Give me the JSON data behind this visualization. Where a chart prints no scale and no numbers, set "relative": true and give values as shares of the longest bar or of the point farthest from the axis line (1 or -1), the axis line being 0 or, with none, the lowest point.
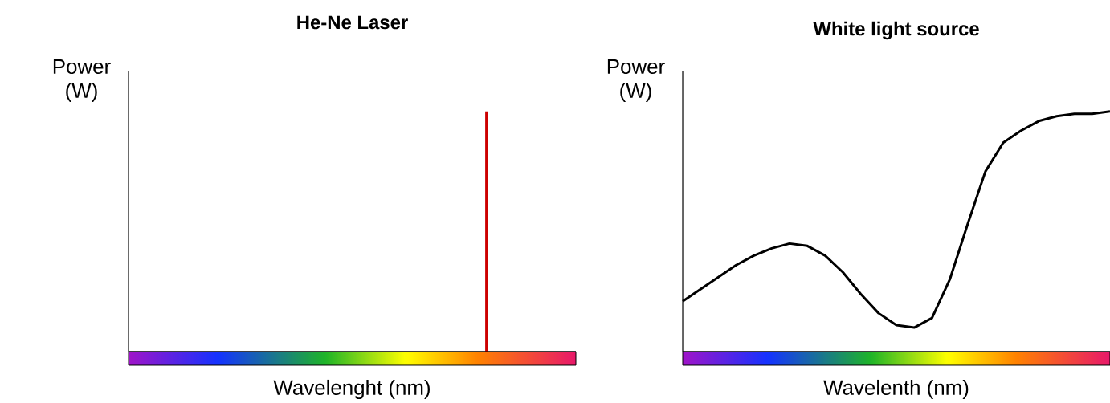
{
  "chart_data": [
    {
      "type": "bar",
      "title": "He-Ne Laser",
      "ylabel": "Power (W)",
      "xlabel": "Wavelenght (nm)",
      "relative": true,
      "color": "#cc0000",
      "categories": [
        null
      ],
      "values": [
        1
      ]
    },
    {
      "type": "line",
      "title": "White light source",
      "ylabel": "Power (W)",
      "xlabel": "Wavelenth (nm)",
      "relative": true,
      "color": "#000000",
      "categories": [
        null,
        null,
        null,
        null,
        null,
        null,
        null,
        null,
        null,
        null,
        null,
        null,
        null,
        null,
        null,
        null,
        null,
        null,
        null,
        null,
        null,
        null,
        null,
        null,
        null
      ],
      "values": [
        0.21,
        0.26,
        0.31,
        0.36,
        0.4,
        0.43,
        0.45,
        0.44,
        0.4,
        0.33,
        0.24,
        0.16,
        0.11,
        0.1,
        0.14,
        0.3,
        0.53,
        0.75,
        0.87,
        0.92,
        0.96,
        0.98,
        0.99,
        0.99,
        1
      ]
    }
  ]
}
